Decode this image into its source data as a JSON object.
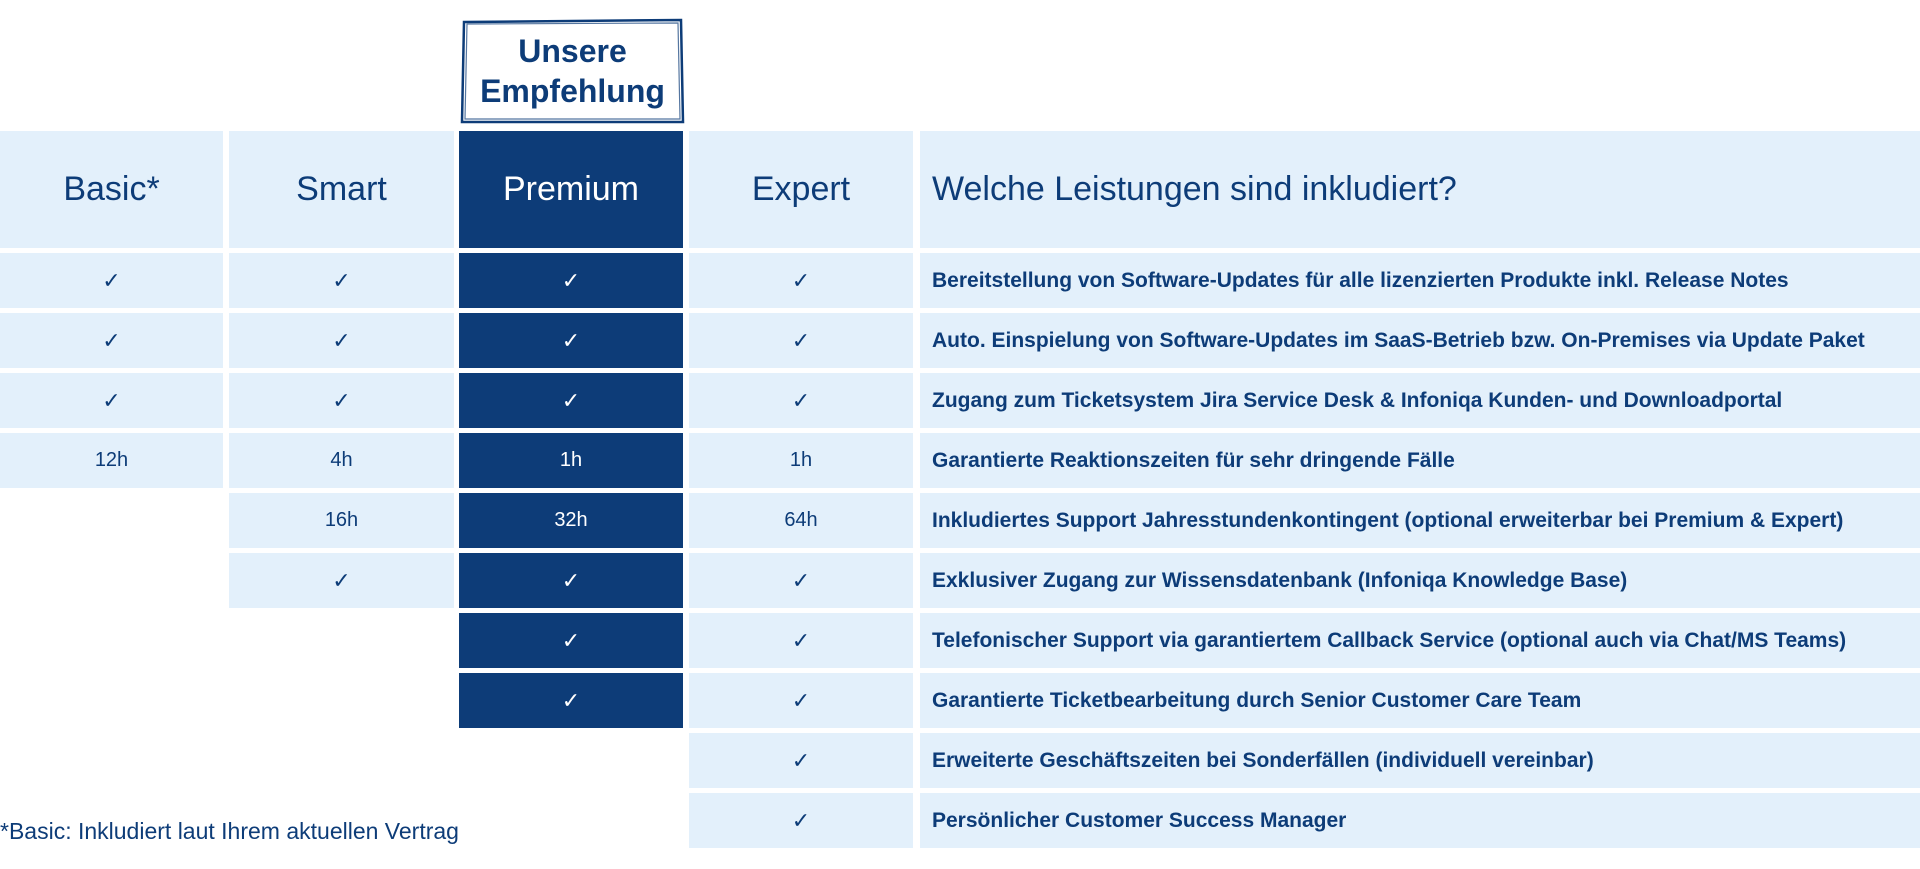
{
  "recommendation": {
    "line1": "Unsere",
    "line2": "Empfehlung"
  },
  "plans": [
    "Basic*",
    "Smart",
    "Premium",
    "Expert"
  ],
  "features_header": "Welche Leistungen sind inkludiert?",
  "rows": [
    {
      "basic": "✓",
      "smart": "✓",
      "premium": "✓",
      "expert": "✓",
      "feature": "Bereitstellung von Software-Updates für alle lizenzierten Produkte inkl. Release Notes"
    },
    {
      "basic": "✓",
      "smart": "✓",
      "premium": "✓",
      "expert": "✓",
      "feature": "Auto. Einspielung von Software-Updates im SaaS-Betrieb bzw. On-Premises via Update Paket"
    },
    {
      "basic": "✓",
      "smart": "✓",
      "premium": "✓",
      "expert": "✓",
      "feature": "Zugang zum Ticketsystem Jira Service Desk & Infoniqa Kunden- und Downloadportal"
    },
    {
      "basic": "12h",
      "smart": "4h",
      "premium": "1h",
      "expert": "1h",
      "feature": "Garantierte Reaktionszeiten für sehr dringende Fälle"
    },
    {
      "basic": "",
      "smart": "16h",
      "premium": "32h",
      "expert": "64h",
      "feature": "Inkludiertes Support Jahresstundenkontingent (optional erweiterbar bei Premium & Expert)"
    },
    {
      "basic": "",
      "smart": "✓",
      "premium": "✓",
      "expert": "✓",
      "feature": "Exklusiver Zugang zur Wissensdatenbank (Infoniqa Knowledge Base)"
    },
    {
      "basic": "",
      "smart": "",
      "premium": "✓",
      "expert": "✓",
      "feature": "Telefonischer Support via garantiertem Callback Service (optional auch via Chat/MS Teams)"
    },
    {
      "basic": "",
      "smart": "",
      "premium": "✓",
      "expert": "✓",
      "feature": "Garantierte Ticketbearbeitung durch Senior Customer Care Team"
    },
    {
      "basic": "",
      "smart": "",
      "premium": "",
      "expert": "✓",
      "feature": "Erweiterte Geschäftszeiten bei Sonderfällen (individuell vereinbar)"
    },
    {
      "basic": "",
      "smart": "",
      "premium": "",
      "expert": "✓",
      "feature": "Persönlicher Customer Success Manager"
    }
  ],
  "footnote": "*Basic: Inkludiert laut Ihrem aktuellen Vertrag",
  "colors": {
    "dark": "#0d3c78",
    "light": "#e3f0fb",
    "white": "#ffffff"
  }
}
